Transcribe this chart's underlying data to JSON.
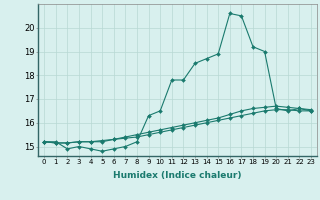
{
  "xlabel": "Humidex (Indice chaleur)",
  "x": [
    0,
    1,
    2,
    3,
    4,
    5,
    6,
    7,
    8,
    9,
    10,
    11,
    12,
    13,
    14,
    15,
    16,
    17,
    18,
    19,
    20,
    21,
    22,
    23
  ],
  "line1": [
    15.2,
    15.2,
    14.9,
    15.0,
    14.9,
    14.8,
    14.9,
    15.0,
    15.2,
    16.3,
    16.5,
    17.8,
    17.8,
    18.5,
    18.7,
    18.9,
    20.6,
    20.5,
    19.2,
    19.0,
    16.6,
    16.5,
    16.6,
    16.5
  ],
  "line2": [
    15.2,
    15.15,
    15.15,
    15.2,
    15.2,
    15.2,
    15.3,
    15.4,
    15.5,
    15.6,
    15.7,
    15.8,
    15.9,
    16.0,
    16.1,
    16.2,
    16.35,
    16.5,
    16.6,
    16.65,
    16.7,
    16.65,
    16.6,
    16.55
  ],
  "line3": [
    15.2,
    15.15,
    15.15,
    15.2,
    15.2,
    15.25,
    15.3,
    15.35,
    15.4,
    15.5,
    15.6,
    15.7,
    15.8,
    15.9,
    16.0,
    16.1,
    16.2,
    16.3,
    16.4,
    16.5,
    16.55,
    16.55,
    16.5,
    16.5
  ],
  "line_color": "#1a7a6e",
  "bg_color": "#d8f0ee",
  "grid_color": "#b8d8d4",
  "ylim": [
    14.6,
    21.0
  ],
  "yticks": [
    15,
    16,
    17,
    18,
    19,
    20
  ],
  "xlim": [
    -0.5,
    23.5
  ],
  "xtick_fontsize": 5.0,
  "ytick_fontsize": 6.0,
  "xlabel_fontsize": 6.5,
  "marker_size": 2.0,
  "linewidth": 0.8
}
